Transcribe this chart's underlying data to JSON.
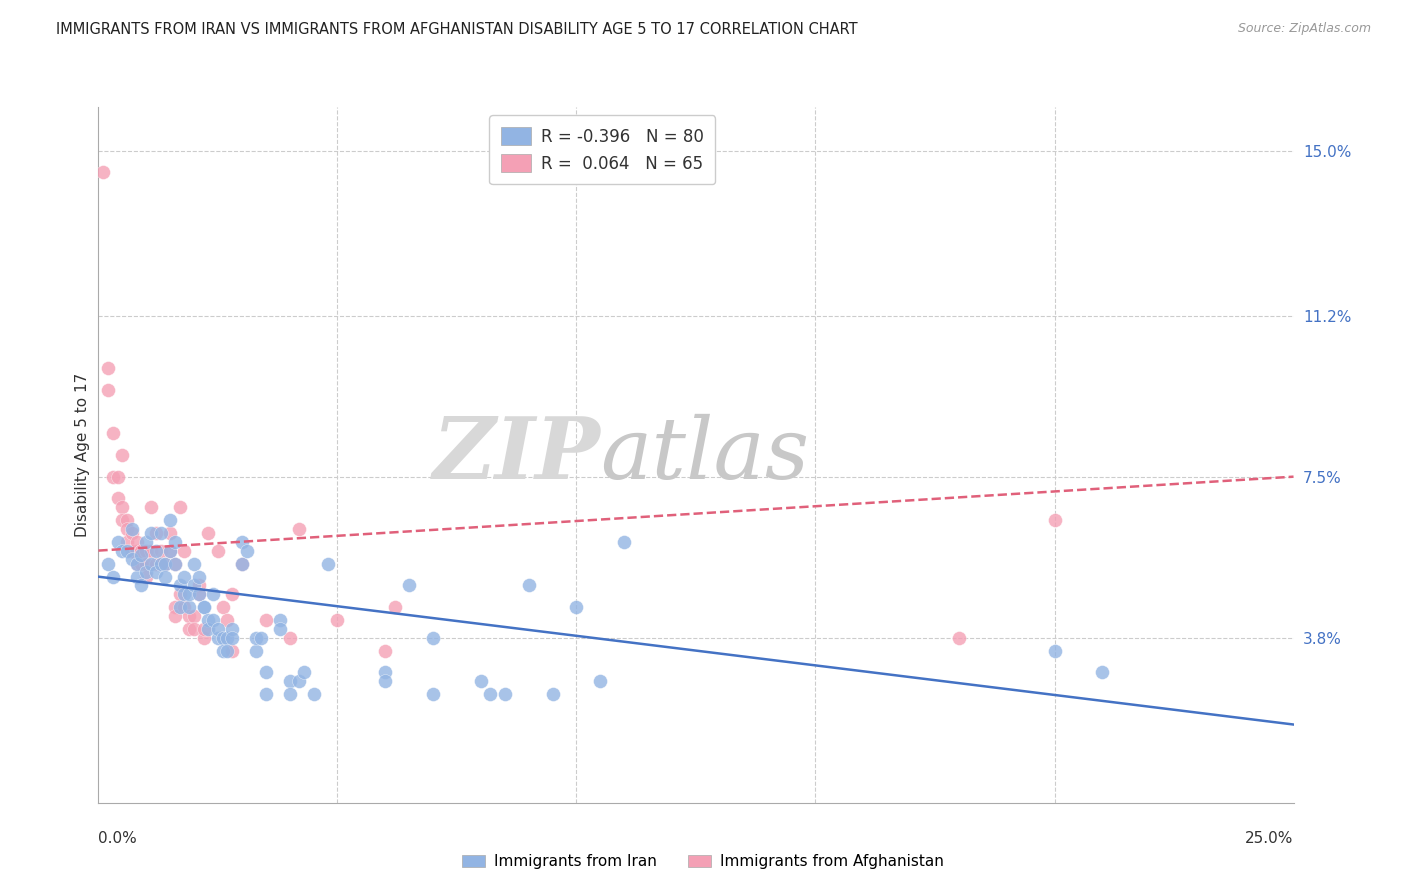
{
  "title": "IMMIGRANTS FROM IRAN VS IMMIGRANTS FROM AFGHANISTAN DISABILITY AGE 5 TO 17 CORRELATION CHART",
  "source": "Source: ZipAtlas.com",
  "ylabel": "Disability Age 5 to 17",
  "ytick_labels": [
    "15.0%",
    "11.2%",
    "7.5%",
    "3.8%"
  ],
  "ytick_values": [
    0.15,
    0.112,
    0.075,
    0.038
  ],
  "xlim": [
    0.0,
    0.25
  ],
  "ylim": [
    0.0,
    0.16
  ],
  "legend_iran_r": "-0.396",
  "legend_iran_n": "80",
  "legend_afghan_r": "0.064",
  "legend_afghan_n": "65",
  "iran_color": "#92b4e3",
  "afghan_color": "#f4a0b5",
  "iran_line_color": "#4472c4",
  "afghan_line_color": "#e0607a",
  "watermark_zip": "ZIP",
  "watermark_atlas": "atlas",
  "iran_scatter": [
    [
      0.002,
      0.055
    ],
    [
      0.003,
      0.052
    ],
    [
      0.004,
      0.06
    ],
    [
      0.005,
      0.058
    ],
    [
      0.006,
      0.058
    ],
    [
      0.007,
      0.056
    ],
    [
      0.007,
      0.063
    ],
    [
      0.008,
      0.052
    ],
    [
      0.008,
      0.055
    ],
    [
      0.009,
      0.05
    ],
    [
      0.009,
      0.057
    ],
    [
      0.01,
      0.053
    ],
    [
      0.01,
      0.06
    ],
    [
      0.011,
      0.062
    ],
    [
      0.011,
      0.055
    ],
    [
      0.012,
      0.058
    ],
    [
      0.012,
      0.053
    ],
    [
      0.013,
      0.062
    ],
    [
      0.013,
      0.055
    ],
    [
      0.014,
      0.055
    ],
    [
      0.014,
      0.052
    ],
    [
      0.015,
      0.058
    ],
    [
      0.015,
      0.065
    ],
    [
      0.016,
      0.055
    ],
    [
      0.016,
      0.06
    ],
    [
      0.017,
      0.05
    ],
    [
      0.017,
      0.045
    ],
    [
      0.018,
      0.048
    ],
    [
      0.018,
      0.052
    ],
    [
      0.019,
      0.045
    ],
    [
      0.019,
      0.048
    ],
    [
      0.02,
      0.05
    ],
    [
      0.02,
      0.055
    ],
    [
      0.021,
      0.048
    ],
    [
      0.021,
      0.052
    ],
    [
      0.022,
      0.045
    ],
    [
      0.022,
      0.045
    ],
    [
      0.023,
      0.042
    ],
    [
      0.023,
      0.04
    ],
    [
      0.024,
      0.048
    ],
    [
      0.024,
      0.042
    ],
    [
      0.025,
      0.038
    ],
    [
      0.025,
      0.04
    ],
    [
      0.026,
      0.038
    ],
    [
      0.026,
      0.035
    ],
    [
      0.027,
      0.038
    ],
    [
      0.027,
      0.035
    ],
    [
      0.028,
      0.04
    ],
    [
      0.028,
      0.038
    ],
    [
      0.03,
      0.055
    ],
    [
      0.03,
      0.06
    ],
    [
      0.031,
      0.058
    ],
    [
      0.033,
      0.035
    ],
    [
      0.033,
      0.038
    ],
    [
      0.034,
      0.038
    ],
    [
      0.035,
      0.03
    ],
    [
      0.035,
      0.025
    ],
    [
      0.038,
      0.042
    ],
    [
      0.038,
      0.04
    ],
    [
      0.04,
      0.028
    ],
    [
      0.04,
      0.025
    ],
    [
      0.042,
      0.028
    ],
    [
      0.043,
      0.03
    ],
    [
      0.045,
      0.025
    ],
    [
      0.048,
      0.055
    ],
    [
      0.06,
      0.03
    ],
    [
      0.06,
      0.028
    ],
    [
      0.065,
      0.05
    ],
    [
      0.07,
      0.038
    ],
    [
      0.07,
      0.025
    ],
    [
      0.08,
      0.028
    ],
    [
      0.082,
      0.025
    ],
    [
      0.085,
      0.025
    ],
    [
      0.09,
      0.05
    ],
    [
      0.095,
      0.025
    ],
    [
      0.1,
      0.045
    ],
    [
      0.105,
      0.028
    ],
    [
      0.11,
      0.06
    ],
    [
      0.2,
      0.035
    ],
    [
      0.21,
      0.03
    ]
  ],
  "afghan_scatter": [
    [
      0.001,
      0.145
    ],
    [
      0.002,
      0.1
    ],
    [
      0.002,
      0.095
    ],
    [
      0.003,
      0.085
    ],
    [
      0.003,
      0.075
    ],
    [
      0.004,
      0.075
    ],
    [
      0.004,
      0.07
    ],
    [
      0.005,
      0.08
    ],
    [
      0.005,
      0.068
    ],
    [
      0.005,
      0.065
    ],
    [
      0.006,
      0.065
    ],
    [
      0.006,
      0.063
    ],
    [
      0.006,
      0.06
    ],
    [
      0.007,
      0.058
    ],
    [
      0.007,
      0.062
    ],
    [
      0.007,
      0.058
    ],
    [
      0.008,
      0.058
    ],
    [
      0.008,
      0.06
    ],
    [
      0.008,
      0.055
    ],
    [
      0.009,
      0.058
    ],
    [
      0.009,
      0.055
    ],
    [
      0.009,
      0.058
    ],
    [
      0.01,
      0.058
    ],
    [
      0.01,
      0.055
    ],
    [
      0.01,
      0.052
    ],
    [
      0.011,
      0.058
    ],
    [
      0.011,
      0.068
    ],
    [
      0.012,
      0.062
    ],
    [
      0.012,
      0.055
    ],
    [
      0.013,
      0.055
    ],
    [
      0.013,
      0.055
    ],
    [
      0.013,
      0.058
    ],
    [
      0.014,
      0.055
    ],
    [
      0.015,
      0.058
    ],
    [
      0.015,
      0.062
    ],
    [
      0.016,
      0.055
    ],
    [
      0.016,
      0.045
    ],
    [
      0.016,
      0.043
    ],
    [
      0.017,
      0.048
    ],
    [
      0.017,
      0.068
    ],
    [
      0.018,
      0.058
    ],
    [
      0.018,
      0.045
    ],
    [
      0.019,
      0.043
    ],
    [
      0.019,
      0.04
    ],
    [
      0.02,
      0.043
    ],
    [
      0.02,
      0.04
    ],
    [
      0.021,
      0.05
    ],
    [
      0.021,
      0.048
    ],
    [
      0.022,
      0.038
    ],
    [
      0.022,
      0.04
    ],
    [
      0.023,
      0.062
    ],
    [
      0.025,
      0.058
    ],
    [
      0.026,
      0.045
    ],
    [
      0.027,
      0.042
    ],
    [
      0.028,
      0.035
    ],
    [
      0.028,
      0.048
    ],
    [
      0.03,
      0.055
    ],
    [
      0.035,
      0.042
    ],
    [
      0.04,
      0.038
    ],
    [
      0.042,
      0.063
    ],
    [
      0.05,
      0.042
    ],
    [
      0.06,
      0.035
    ],
    [
      0.062,
      0.045
    ],
    [
      0.18,
      0.038
    ],
    [
      0.2,
      0.065
    ]
  ],
  "iran_line_x": [
    0.0,
    0.25
  ],
  "iran_line_y": [
    0.052,
    0.018
  ],
  "afghan_line_x": [
    0.0,
    0.25
  ],
  "afghan_line_y": [
    0.058,
    0.075
  ]
}
